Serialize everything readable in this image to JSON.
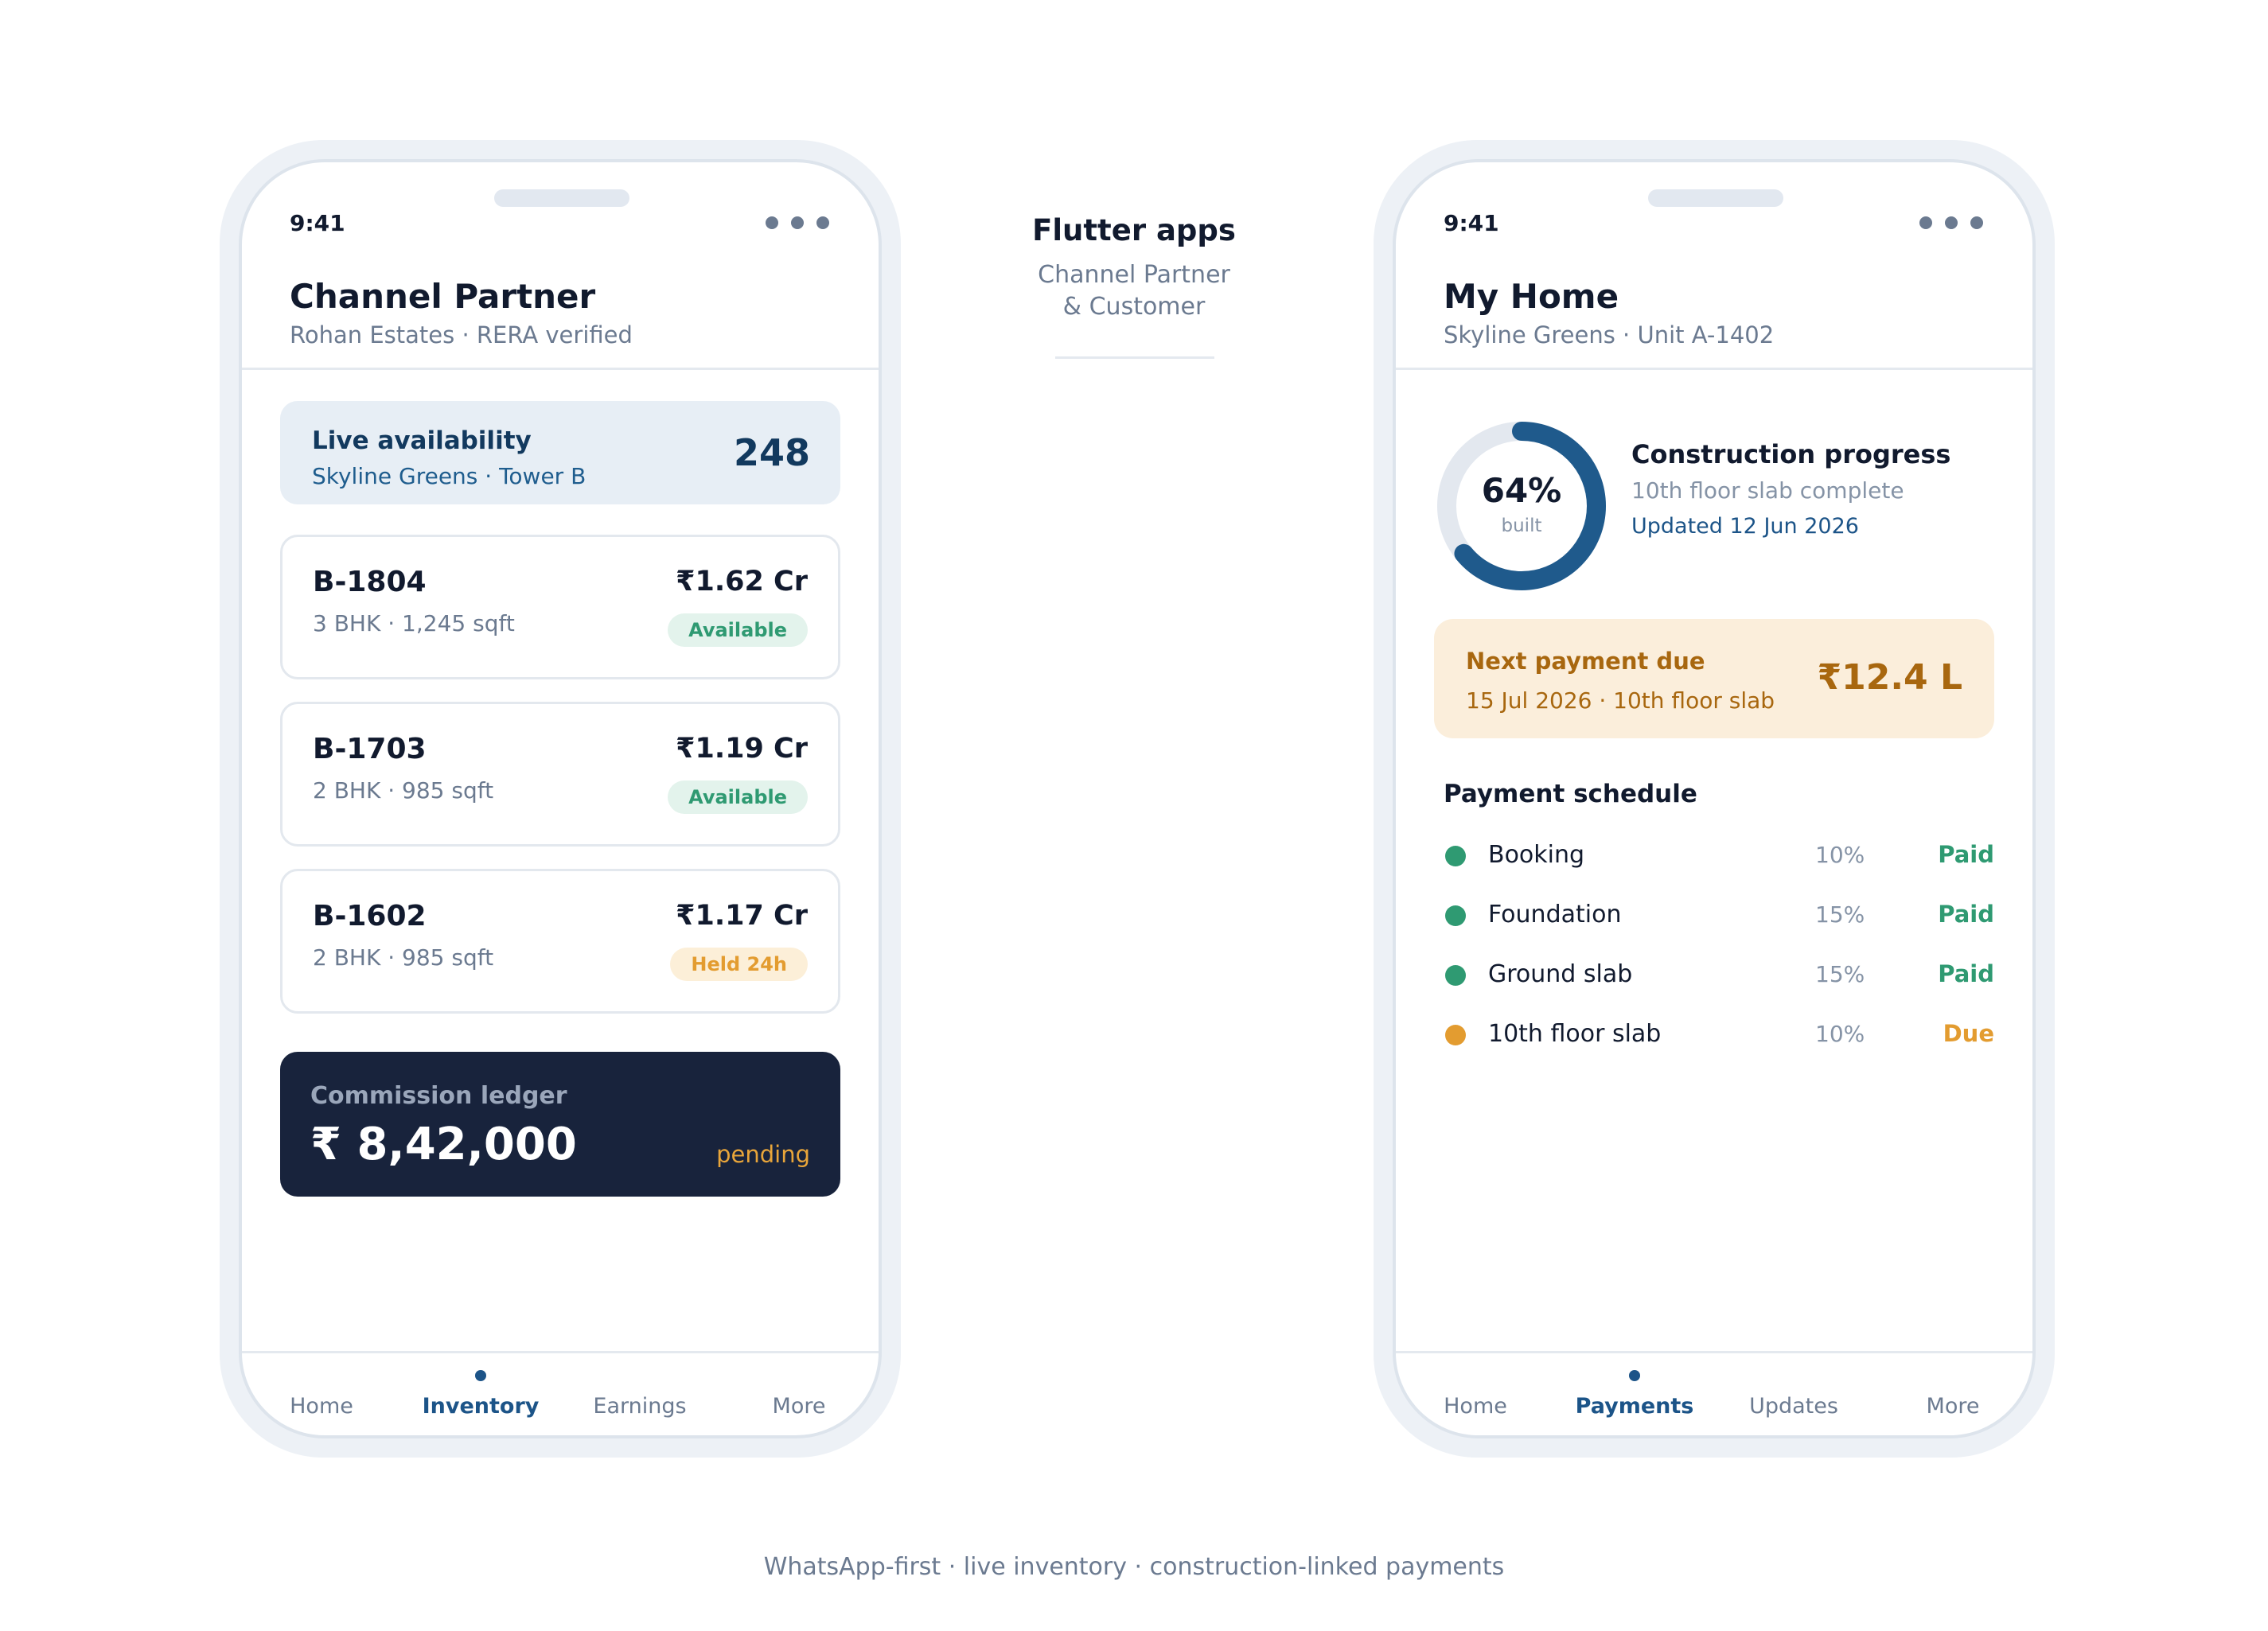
{
  "partner_app": {
    "status_time": "9:41",
    "title": "Channel Partner",
    "subtitle": "Rohan Estates · RERA verified",
    "availability": {
      "title": "Live availability",
      "subtitle": "Skyline Greens · Tower B",
      "count": "248"
    },
    "units": [
      {
        "code": "B-1804",
        "spec": "3 BHK · 1,245 sqft",
        "price": "₹1.62 Cr",
        "status": "Available",
        "status_kind": "available"
      },
      {
        "code": "B-1703",
        "spec": "2 BHK · 985 sqft",
        "price": "₹1.19 Cr",
        "status": "Available",
        "status_kind": "available"
      },
      {
        "code": "B-1602",
        "spec": "2 BHK · 985 sqft",
        "price": "₹1.17 Cr",
        "status": "Held 24h",
        "status_kind": "held"
      }
    ],
    "commission": {
      "label": "Commission ledger",
      "value": "₹ 8,42,000",
      "state": "pending"
    },
    "nav": [
      {
        "label": "Home",
        "active": false
      },
      {
        "label": "Inventory",
        "active": true
      },
      {
        "label": "Earnings",
        "active": false
      },
      {
        "label": "More",
        "active": false
      }
    ]
  },
  "center": {
    "title": "Flutter apps",
    "subtitle_line1": "Channel Partner",
    "subtitle_line2": "& Customer"
  },
  "customer_app": {
    "status_time": "9:41",
    "title": "My Home",
    "subtitle": "Skyline Greens · Unit A-1402",
    "progress": {
      "percent_label": "64%",
      "percent_value": 64,
      "caption": "built",
      "title": "Construction progress",
      "detail": "10th floor slab complete",
      "updated": "Updated 12 Jun 2026"
    },
    "next_payment": {
      "title": "Next payment due",
      "detail": "15 Jul 2026 · 10th floor slab",
      "amount": "₹12.4 L"
    },
    "schedule_title": "Payment schedule",
    "schedule": [
      {
        "name": "Booking",
        "percent": "10%",
        "status": "Paid",
        "kind": "paid"
      },
      {
        "name": "Foundation",
        "percent": "15%",
        "status": "Paid",
        "kind": "paid"
      },
      {
        "name": "Ground slab",
        "percent": "15%",
        "status": "Paid",
        "kind": "paid"
      },
      {
        "name": "10th floor slab",
        "percent": "10%",
        "status": "Due",
        "kind": "due"
      }
    ],
    "nav": [
      {
        "label": "Home",
        "active": false
      },
      {
        "label": "Payments",
        "active": true
      },
      {
        "label": "Updates",
        "active": false
      },
      {
        "label": "More",
        "active": false
      }
    ]
  },
  "footer": "WhatsApp-first · live inventory · construction-linked payments",
  "colors": {
    "primary": "#1c5488",
    "navy": "#18233c",
    "paid": "#2f9a72",
    "due": "#e39c30",
    "ring_track": "#e3e8ef",
    "ring_fill": "#1f5a8c"
  }
}
